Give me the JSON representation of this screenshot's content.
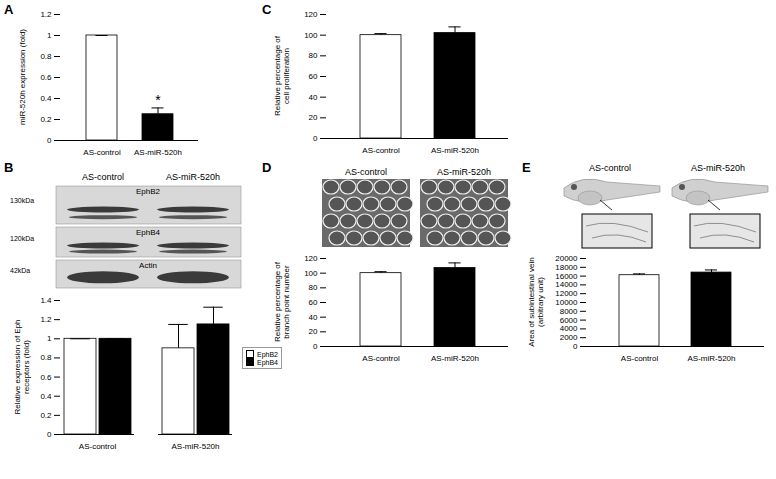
{
  "chart_data": [
    {
      "type": "bar",
      "title": "A",
      "categories": [
        "AS-control",
        "AS-miR-520h"
      ],
      "values": [
        1,
        0.25
      ],
      "errors": [
        0,
        0.06
      ],
      "colors": [
        "#ffffff",
        "#000000"
      ],
      "y_label": "miR-520h expression (fold)",
      "ylim": [
        0,
        1.2
      ],
      "yticks": [
        0,
        0.2,
        0.4,
        0.6,
        0.8,
        1,
        1.2
      ],
      "annotations": [
        {
          "category": "AS-miR-520h",
          "text": "*"
        }
      ]
    },
    {
      "type": "bar",
      "title": "B",
      "categories": [
        "AS-control",
        "AS-miR-520h"
      ],
      "series": [
        {
          "name": "EphB2",
          "color": "#ffffff",
          "values": [
            1,
            0.9
          ],
          "errors": [
            0,
            0.25
          ]
        },
        {
          "name": "EphB4",
          "color": "#000000",
          "values": [
            1,
            1.15
          ],
          "errors": [
            0,
            0.18
          ]
        }
      ],
      "y_label": "Relative expression of Eph\nreceptors (fold)",
      "ylim": [
        0,
        1.4
      ],
      "yticks": [
        0,
        0.2,
        0.4,
        0.6,
        0.8,
        1,
        1.2,
        1.4
      ],
      "legend": "right",
      "image_labels": {
        "lanes": [
          "AS-control",
          "AS-miR-520h"
        ],
        "bands": [
          {
            "size": "130kDa",
            "name": "EphB2"
          },
          {
            "size": "120kDa",
            "name": "EphB4"
          },
          {
            "size": "42kDa",
            "name": "Actin"
          }
        ]
      }
    },
    {
      "type": "bar",
      "title": "C",
      "categories": [
        "AS-control",
        "AS-miR-520h"
      ],
      "values": [
        100,
        102
      ],
      "errors": [
        1.5,
        6
      ],
      "colors": [
        "#ffffff",
        "#000000"
      ],
      "y_label": "Relative percentage of\ncell proliferation",
      "ylim": [
        0,
        120
      ],
      "yticks": [
        0,
        20,
        40,
        60,
        80,
        100,
        120
      ]
    },
    {
      "type": "bar",
      "title": "D",
      "categories": [
        "AS-control",
        "AS-miR-520h"
      ],
      "values": [
        100,
        107
      ],
      "errors": [
        2,
        7
      ],
      "colors": [
        "#ffffff",
        "#000000"
      ],
      "y_label": "Relative percentage of\nbranch point number",
      "ylim": [
        0,
        120
      ],
      "yticks": [
        0,
        20,
        40,
        60,
        80,
        100,
        120
      ],
      "image_labels": {
        "lanes": [
          "AS-control",
          "AS-miR-520h"
        ]
      }
    },
    {
      "type": "bar",
      "title": "E",
      "categories": [
        "AS-control",
        "AS-miR-520h"
      ],
      "values": [
        16200,
        16800
      ],
      "errors": [
        300,
        600
      ],
      "colors": [
        "#ffffff",
        "#000000"
      ],
      "y_label": "Area of subintestinal vein\n(arbitrary unit)",
      "ylim": [
        0,
        20000
      ],
      "yticks": [
        0,
        2000,
        4000,
        6000,
        8000,
        10000,
        12000,
        14000,
        16000,
        18000,
        20000
      ],
      "image_labels": {
        "lanes": [
          "AS-control",
          "AS-miR-520h"
        ]
      }
    }
  ]
}
